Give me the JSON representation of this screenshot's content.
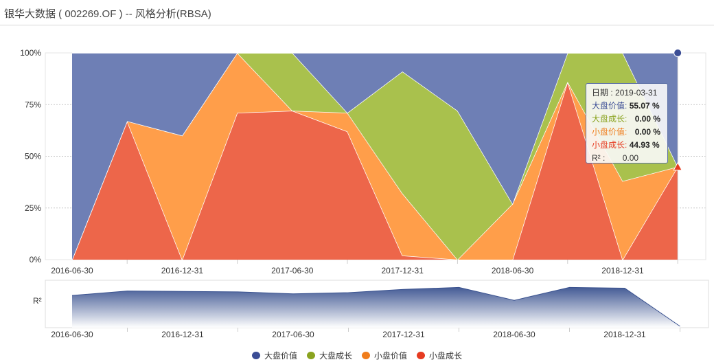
{
  "header": {
    "title": "银华大数据 ( 002269.OF ) -- 风格分析(RBSA)"
  },
  "colors": {
    "large_value": "#6e7fb5",
    "large_growth": "#a9c14d",
    "small_value": "#ff9e4a",
    "small_growth": "#ed664a",
    "navigator_line": "#3b5390",
    "marker_large_value": "#3b4d95",
    "marker_small_growth": "#e63b21"
  },
  "chart_data": [
    {
      "type": "area",
      "stacked": true,
      "x_tick_labels": [
        "2016-06-30",
        "2016-12-31",
        "2017-06-30",
        "2017-12-31",
        "2018-06-30",
        "2018-12-31"
      ],
      "y_tick_labels": [
        "100%",
        "75%",
        "50%",
        "25%",
        "0%"
      ],
      "ylim": [
        0,
        100
      ],
      "grid": true,
      "x": [
        "2016-06-30",
        "2016-09-30",
        "2016-12-31",
        "2017-03-31",
        "2017-06-30",
        "2017-09-30",
        "2017-12-31",
        "2018-03-31",
        "2018-06-30",
        "2018-09-30",
        "2018-12-31",
        "2019-03-31"
      ],
      "series": [
        {
          "name": "小盘成长",
          "values": [
            0,
            67,
            0,
            71,
            72,
            62,
            2,
            0,
            0,
            86,
            0,
            44.93
          ]
        },
        {
          "name": "小盘价值",
          "values": [
            0,
            0,
            60,
            29,
            0,
            9,
            30,
            0,
            27,
            0,
            38,
            0
          ]
        },
        {
          "name": "大盘成长",
          "values": [
            0,
            0,
            0,
            0,
            28,
            0,
            59,
            72,
            0,
            14,
            62,
            0
          ]
        },
        {
          "name": "大盘价值",
          "values": [
            100,
            33,
            40,
            0,
            0,
            29,
            9,
            28,
            73,
            0,
            0,
            55.07
          ]
        }
      ],
      "legend": {
        "position": "bottom",
        "items": [
          "大盘价值",
          "大盘成长",
          "小盘价值",
          "小盘成长"
        ]
      },
      "tooltip": {
        "date_label": "日期 : ",
        "date": "2019-03-31",
        "rows": [
          {
            "label": "大盘价值:",
            "value": "55.07",
            "unit": " %"
          },
          {
            "label": "大盘成长:",
            "value": "0.00",
            "unit": " %"
          },
          {
            "label": "小盘价值:",
            "value": "0.00",
            "unit": " %"
          },
          {
            "label": "小盘成长:",
            "value": "44.93",
            "unit": " %"
          }
        ],
        "r2_label": "R² :",
        "r2_value": "0.00"
      }
    },
    {
      "type": "area",
      "ylabel": "R²",
      "x_tick_labels": [
        "2016-06-30",
        "2016-12-31",
        "2017-06-30",
        "2017-12-31",
        "2018-06-30",
        "2018-12-31"
      ],
      "ylim": [
        0,
        1
      ],
      "x": [
        "2016-06-30",
        "2016-09-30",
        "2016-12-31",
        "2017-03-31",
        "2017-06-30",
        "2017-09-30",
        "2017-12-31",
        "2018-03-31",
        "2018-06-30",
        "2018-09-30",
        "2018-12-31",
        "2019-03-31"
      ],
      "values": [
        0.76,
        0.87,
        0.86,
        0.85,
        0.8,
        0.83,
        0.91,
        0.96,
        0.64,
        0.96,
        0.94,
        0.0
      ]
    }
  ]
}
